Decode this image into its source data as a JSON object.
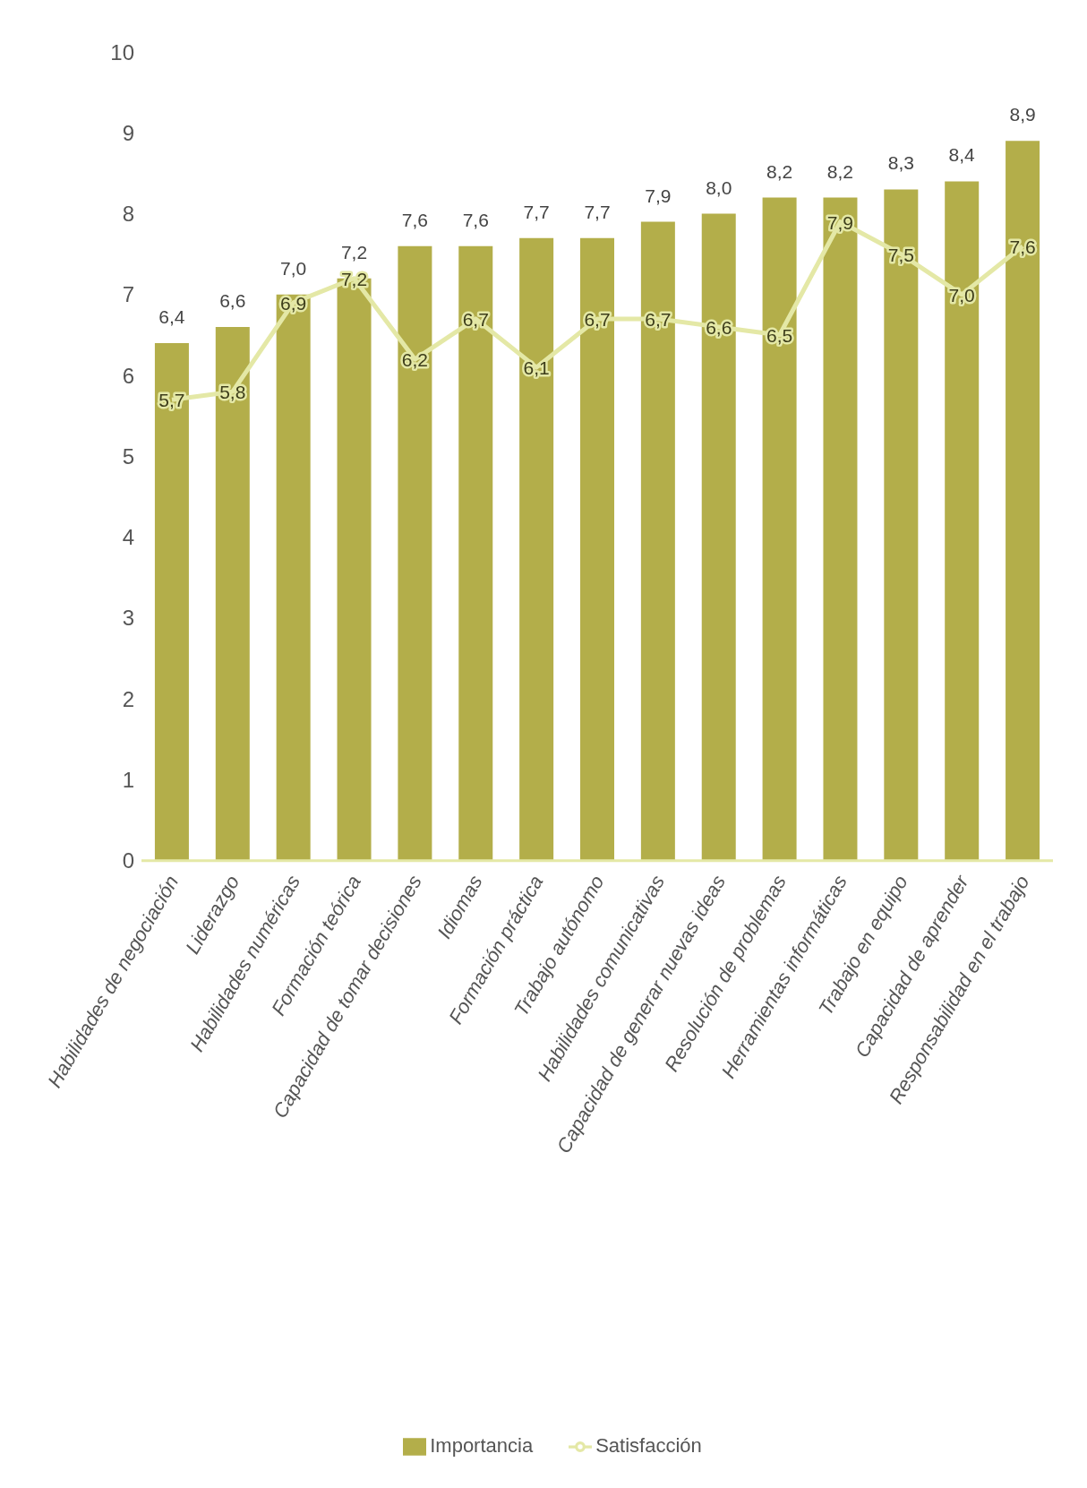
{
  "chart_data": {
    "type": "bar",
    "categories": [
      "Habilidades de negociación",
      "Liderazgo",
      "Habilidades numéricas",
      "Formación teórica",
      "Capacidad de tomar decisiones",
      "Idiomas",
      "Formación práctica",
      "Trabajo autónomo",
      "Habilidades comunicativas",
      "Capacidad de generar nuevas ideas",
      "Resolución de problemas",
      "Herramientas informáticas",
      "Trabajo en equipo",
      "Capacidad de aprender",
      "Responsabilidad en el trabajo"
    ],
    "series": [
      {
        "name": "Importancia",
        "type": "bar",
        "color": "#b3ae4a",
        "values": [
          6.4,
          6.6,
          7.0,
          7.2,
          7.6,
          7.6,
          7.7,
          7.7,
          7.9,
          8.0,
          8.2,
          8.2,
          8.3,
          8.4,
          8.9
        ],
        "value_labels": [
          "6,4",
          "6,6",
          "7,0",
          "7,2",
          "7,6",
          "7,6",
          "7,7",
          "7,7",
          "7,9",
          "8,0",
          "8,2",
          "8,2",
          "8,3",
          "8,4",
          "8,9"
        ]
      },
      {
        "name": "Satisfacción",
        "type": "line",
        "color": "#e4e8a6",
        "values": [
          5.7,
          5.8,
          6.9,
          7.2,
          6.2,
          6.7,
          6.1,
          6.7,
          6.7,
          6.6,
          6.5,
          7.9,
          7.5,
          7.0,
          7.6
        ],
        "value_labels": [
          "5,7",
          "5,8",
          "6,9",
          "7,2",
          "6,2",
          "6,7",
          "6,1",
          "6,7",
          "6,7",
          "6,6",
          "6,5",
          "7,9",
          "7,5",
          "7,0",
          "7,6"
        ]
      }
    ],
    "ylim": [
      0,
      10
    ],
    "yticks": [
      0,
      1,
      2,
      3,
      4,
      5,
      6,
      7,
      8,
      9,
      10
    ],
    "grid": false,
    "legend": "bottom",
    "marker": "none",
    "line_style": "solid"
  }
}
